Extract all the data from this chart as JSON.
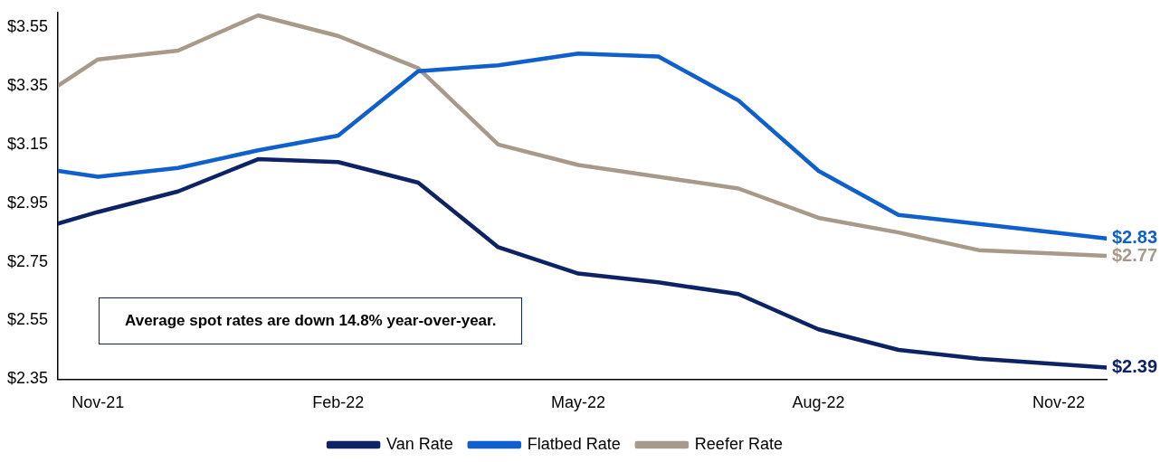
{
  "chart_data": {
    "type": "line",
    "legend": "bottom",
    "grid": false,
    "marker": "none",
    "line_style": "solid",
    "xlim": [
      "2021-10-16",
      "2022-11-19"
    ],
    "xticks": [
      {
        "value": "2021-11",
        "label": "Nov-21"
      },
      {
        "value": "2022-02",
        "label": "Feb-22"
      },
      {
        "value": "2022-05",
        "label": "May-22"
      },
      {
        "value": "2022-08",
        "label": "Aug-22"
      },
      {
        "value": "2022-11",
        "label": "Nov-22"
      }
    ],
    "ylim": [
      2.35,
      3.6
    ],
    "yticks": [
      {
        "value": 2.35,
        "label": "$2.35"
      },
      {
        "value": 2.55,
        "label": "$2.55"
      },
      {
        "value": 2.75,
        "label": "$2.75"
      },
      {
        "value": 2.95,
        "label": "$2.95"
      },
      {
        "value": 3.15,
        "label": "$3.15"
      },
      {
        "value": 3.35,
        "label": "$3.35"
      },
      {
        "value": 3.55,
        "label": "$3.55"
      }
    ],
    "annotations": [
      "Average spot rates are down 14.8% year-over-year."
    ],
    "series": [
      {
        "name": "Van Rate",
        "color": "#0d2366",
        "x": [
          "2021-10-16",
          "2021-11",
          "2021-12",
          "2022-01",
          "2022-02",
          "2022-03",
          "2022-04",
          "2022-05",
          "2022-06",
          "2022-07",
          "2022-08",
          "2022-09",
          "2022-10",
          "2022-11-19"
        ],
        "values": [
          2.88,
          2.92,
          2.99,
          3.1,
          3.09,
          3.02,
          2.8,
          2.71,
          2.68,
          2.64,
          2.52,
          2.45,
          2.42,
          2.39
        ],
        "value_labels": [
          null,
          null,
          null,
          null,
          null,
          null,
          null,
          null,
          null,
          null,
          null,
          null,
          null,
          "$2.39"
        ]
      },
      {
        "name": "Flatbed Rate",
        "color": "#0f5fcc",
        "x": [
          "2021-10-16",
          "2021-11",
          "2021-12",
          "2022-01",
          "2022-02",
          "2022-03",
          "2022-04",
          "2022-05",
          "2022-06",
          "2022-07",
          "2022-08",
          "2022-09",
          "2022-11-19"
        ],
        "values": [
          3.06,
          3.04,
          3.07,
          3.13,
          3.18,
          3.4,
          3.42,
          3.46,
          3.45,
          3.3,
          3.06,
          2.91,
          2.83
        ],
        "value_labels": [
          null,
          null,
          null,
          null,
          null,
          null,
          null,
          null,
          null,
          null,
          null,
          null,
          "$2.83"
        ]
      },
      {
        "name": "Reefer Rate",
        "color": "#a89a8a",
        "x": [
          "2021-10-16",
          "2021-11",
          "2021-12",
          "2022-01",
          "2022-02",
          "2022-03",
          "2022-04",
          "2022-05",
          "2022-06",
          "2022-07",
          "2022-08",
          "2022-09",
          "2022-10",
          "2022-11-19"
        ],
        "values": [
          3.35,
          3.44,
          3.47,
          3.59,
          3.52,
          3.41,
          3.15,
          3.08,
          3.04,
          3.0,
          2.9,
          2.85,
          2.79,
          2.77
        ],
        "value_labels": [
          null,
          null,
          null,
          null,
          null,
          null,
          null,
          null,
          null,
          null,
          null,
          null,
          null,
          "$2.77"
        ]
      }
    ]
  }
}
